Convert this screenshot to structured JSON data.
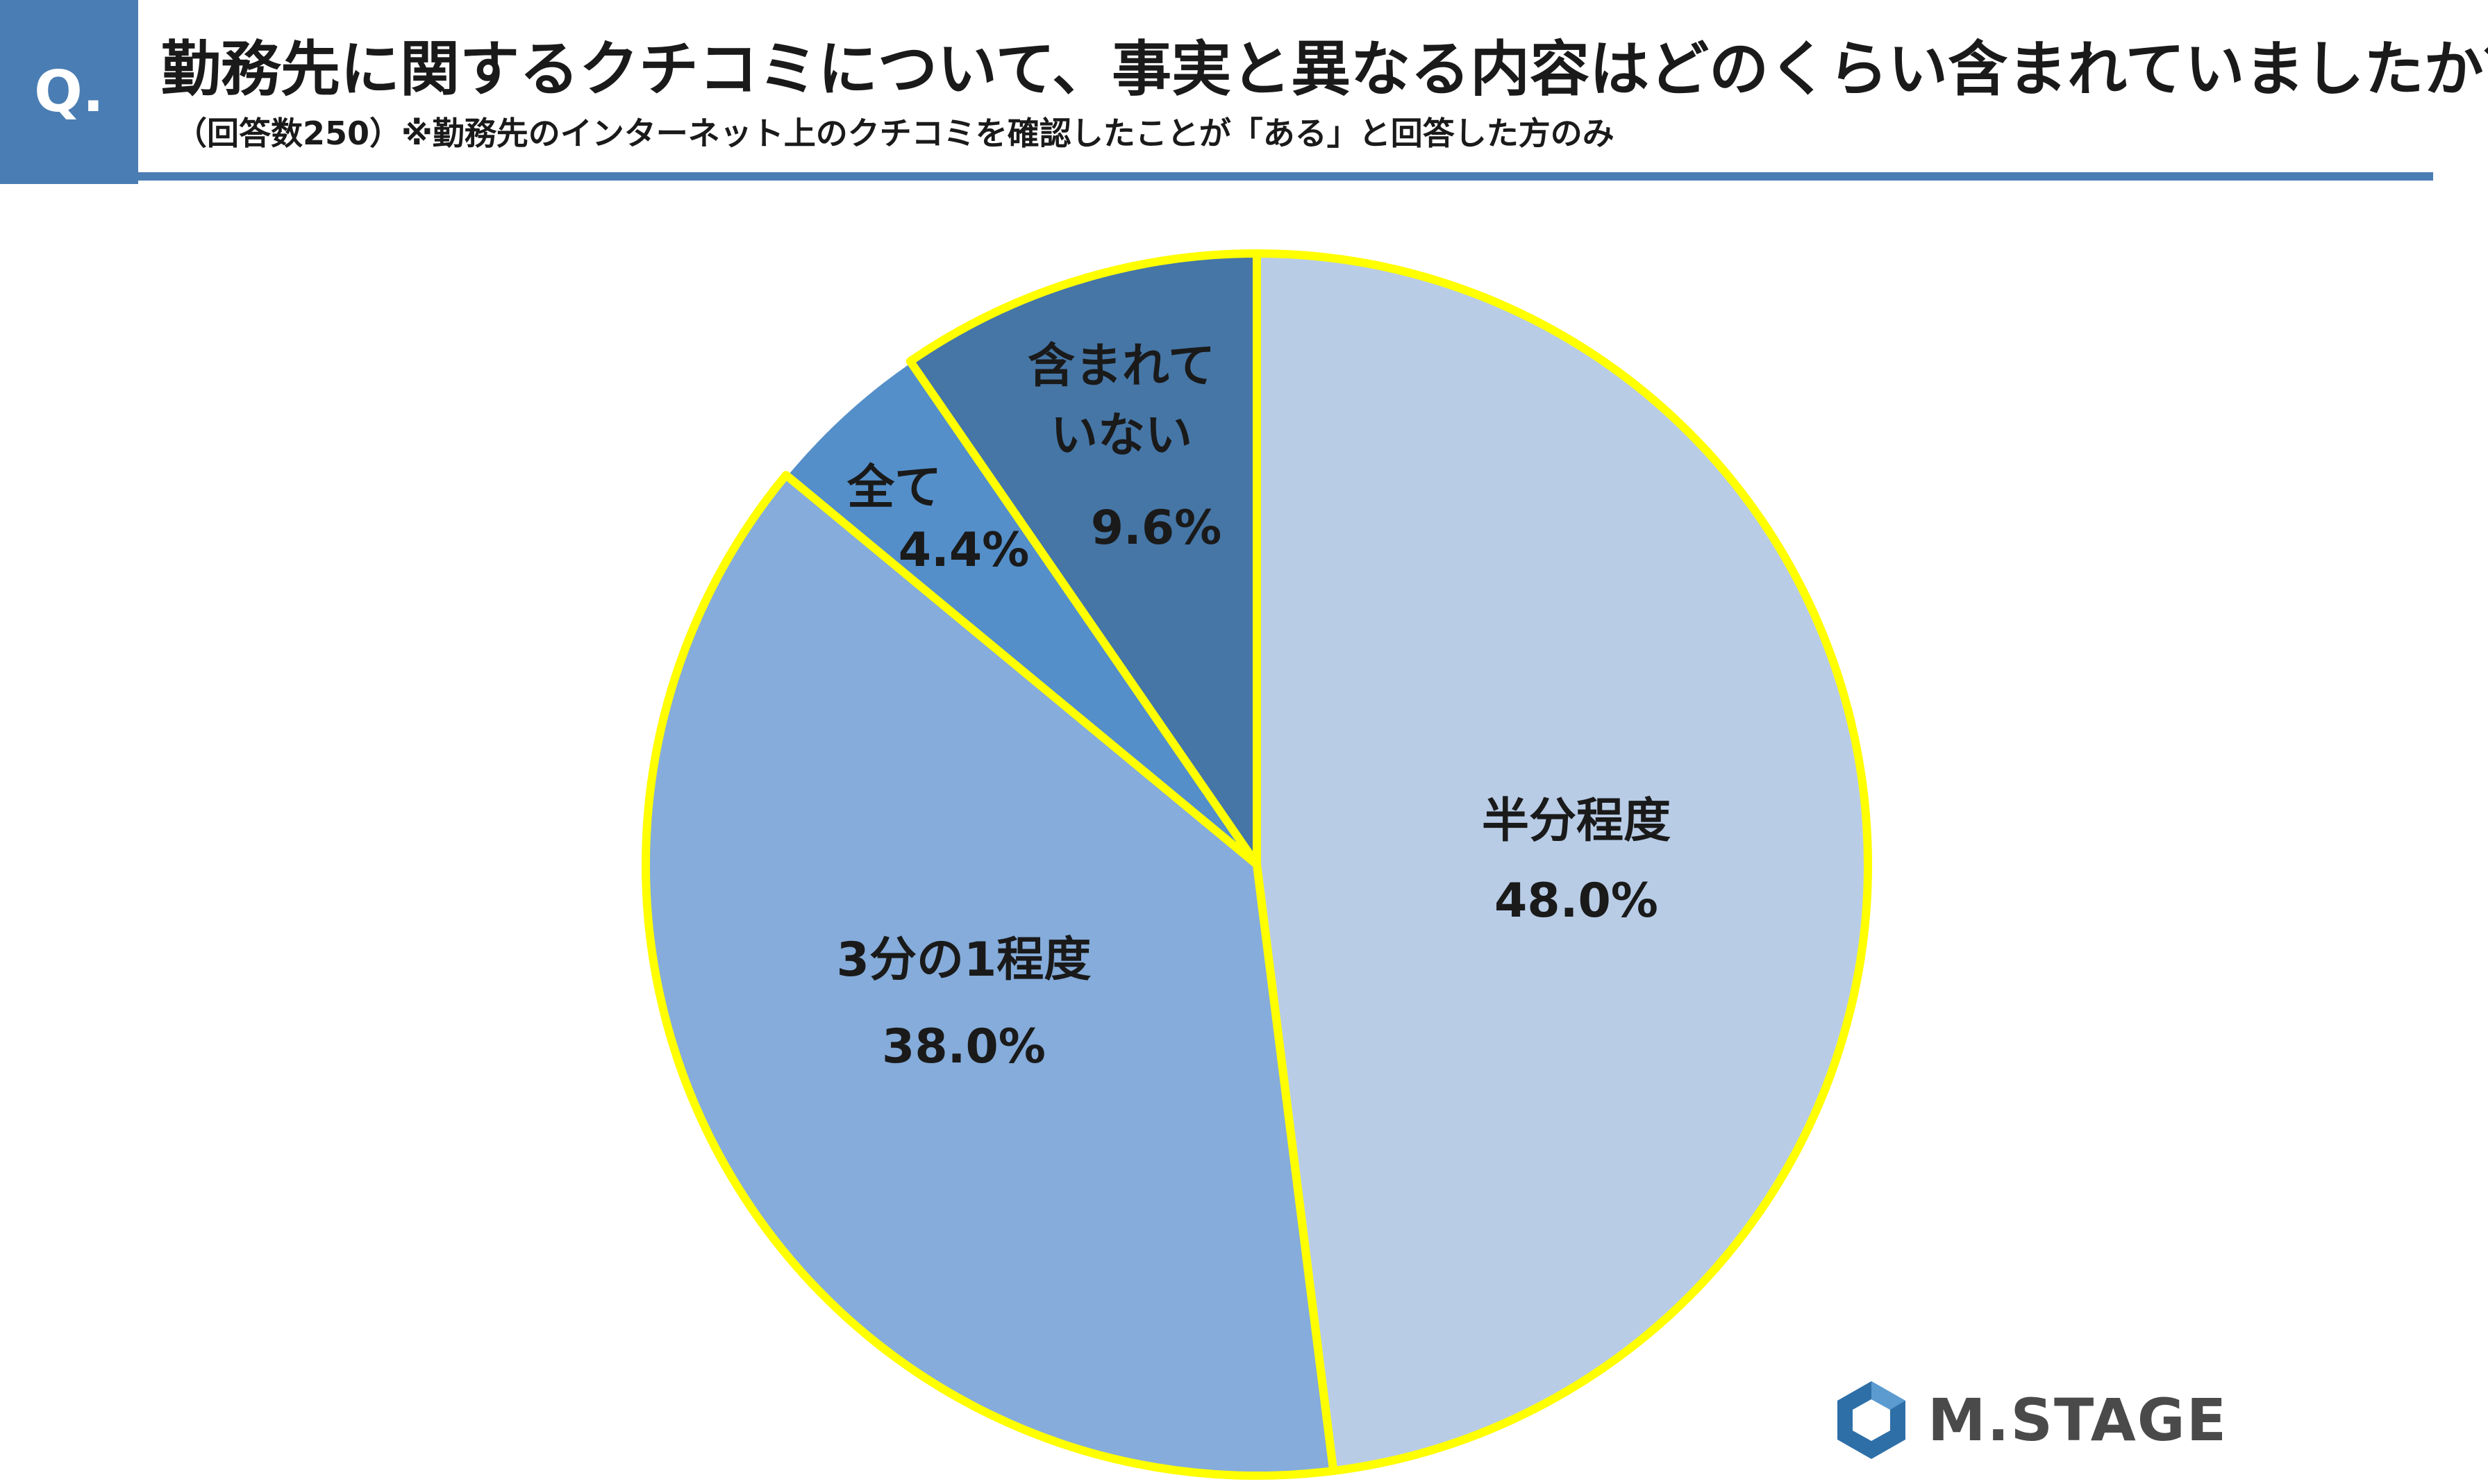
{
  "header": {
    "badge": "Q.",
    "title": "勤務先に関するクチコミについて、事実と異なる内容はどのくらい含まれていましたか？",
    "subtitle": "（回答数250）※勤務先のインターネット上のクチコミを確認したことが「ある」と回答した方のみ"
  },
  "colors": {
    "accent": "#4a7db3",
    "highlight_border": "#ffff00"
  },
  "chart_data": {
    "type": "pie",
    "title": "",
    "unit": "%",
    "start": "12 o'clock",
    "direction": "clockwise",
    "slices": [
      {
        "label": "半分程度",
        "value": 48.0,
        "display": "48.0%",
        "color": "#b8cce6",
        "highlighted": true
      },
      {
        "label": "3分の1程度",
        "value": 38.0,
        "display": "38.0%",
        "color": "#85acda",
        "highlighted": true
      },
      {
        "label": "全て",
        "value": 4.4,
        "display": "4.4%",
        "color": "#548fc9",
        "highlighted": false
      },
      {
        "label": "含まれていない",
        "value": 9.6,
        "display": "9.6%",
        "color": "#4576a6",
        "highlighted": true
      }
    ]
  },
  "logo": {
    "text": "M.STAGE",
    "icon": "hexagon-logo-icon"
  }
}
